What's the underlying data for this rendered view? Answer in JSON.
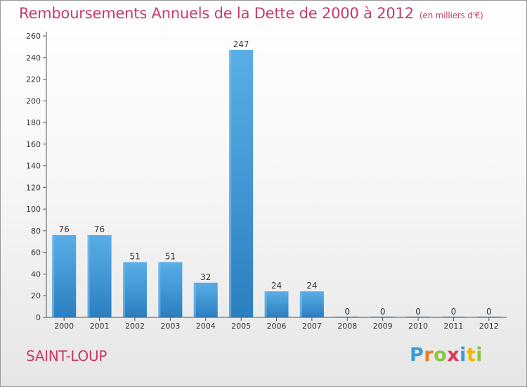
{
  "title": "Remboursements Annuels de la Dette de 2000 à 2012",
  "unit": "(en milliers d'€)",
  "commune": "SAINT-LOUP",
  "brand": {
    "letters": [
      "P",
      "r",
      "o",
      "x",
      "i",
      "t",
      "i"
    ],
    "colors": [
      "#3a9ad9",
      "#e67e22",
      "#8cc63f",
      "#e2335b",
      "#3a9ad9",
      "#f0b400",
      "#8cc63f"
    ]
  },
  "colors": {
    "title": "#c8396b",
    "bar_light": "#5aaee6",
    "bar_dark": "#2b7fc0",
    "axis": "#444444"
  },
  "chart_data": {
    "type": "bar",
    "categories": [
      "2000",
      "2001",
      "2002",
      "2003",
      "2004",
      "2005",
      "2006",
      "2007",
      "2008",
      "2009",
      "2010",
      "2011",
      "2012"
    ],
    "values": [
      76,
      76,
      51,
      51,
      32,
      247,
      24,
      24,
      0,
      0,
      0,
      0,
      0
    ],
    "data_labels": [
      "76",
      "76",
      "51",
      "51",
      "32",
      "247",
      "24",
      "24",
      "0",
      "0",
      "0",
      "0",
      "0"
    ],
    "yticks": [
      0,
      20,
      40,
      60,
      80,
      100,
      120,
      140,
      160,
      180,
      200,
      220,
      240,
      260
    ],
    "ylim": [
      0,
      260
    ],
    "grid": false,
    "legend": "none"
  }
}
